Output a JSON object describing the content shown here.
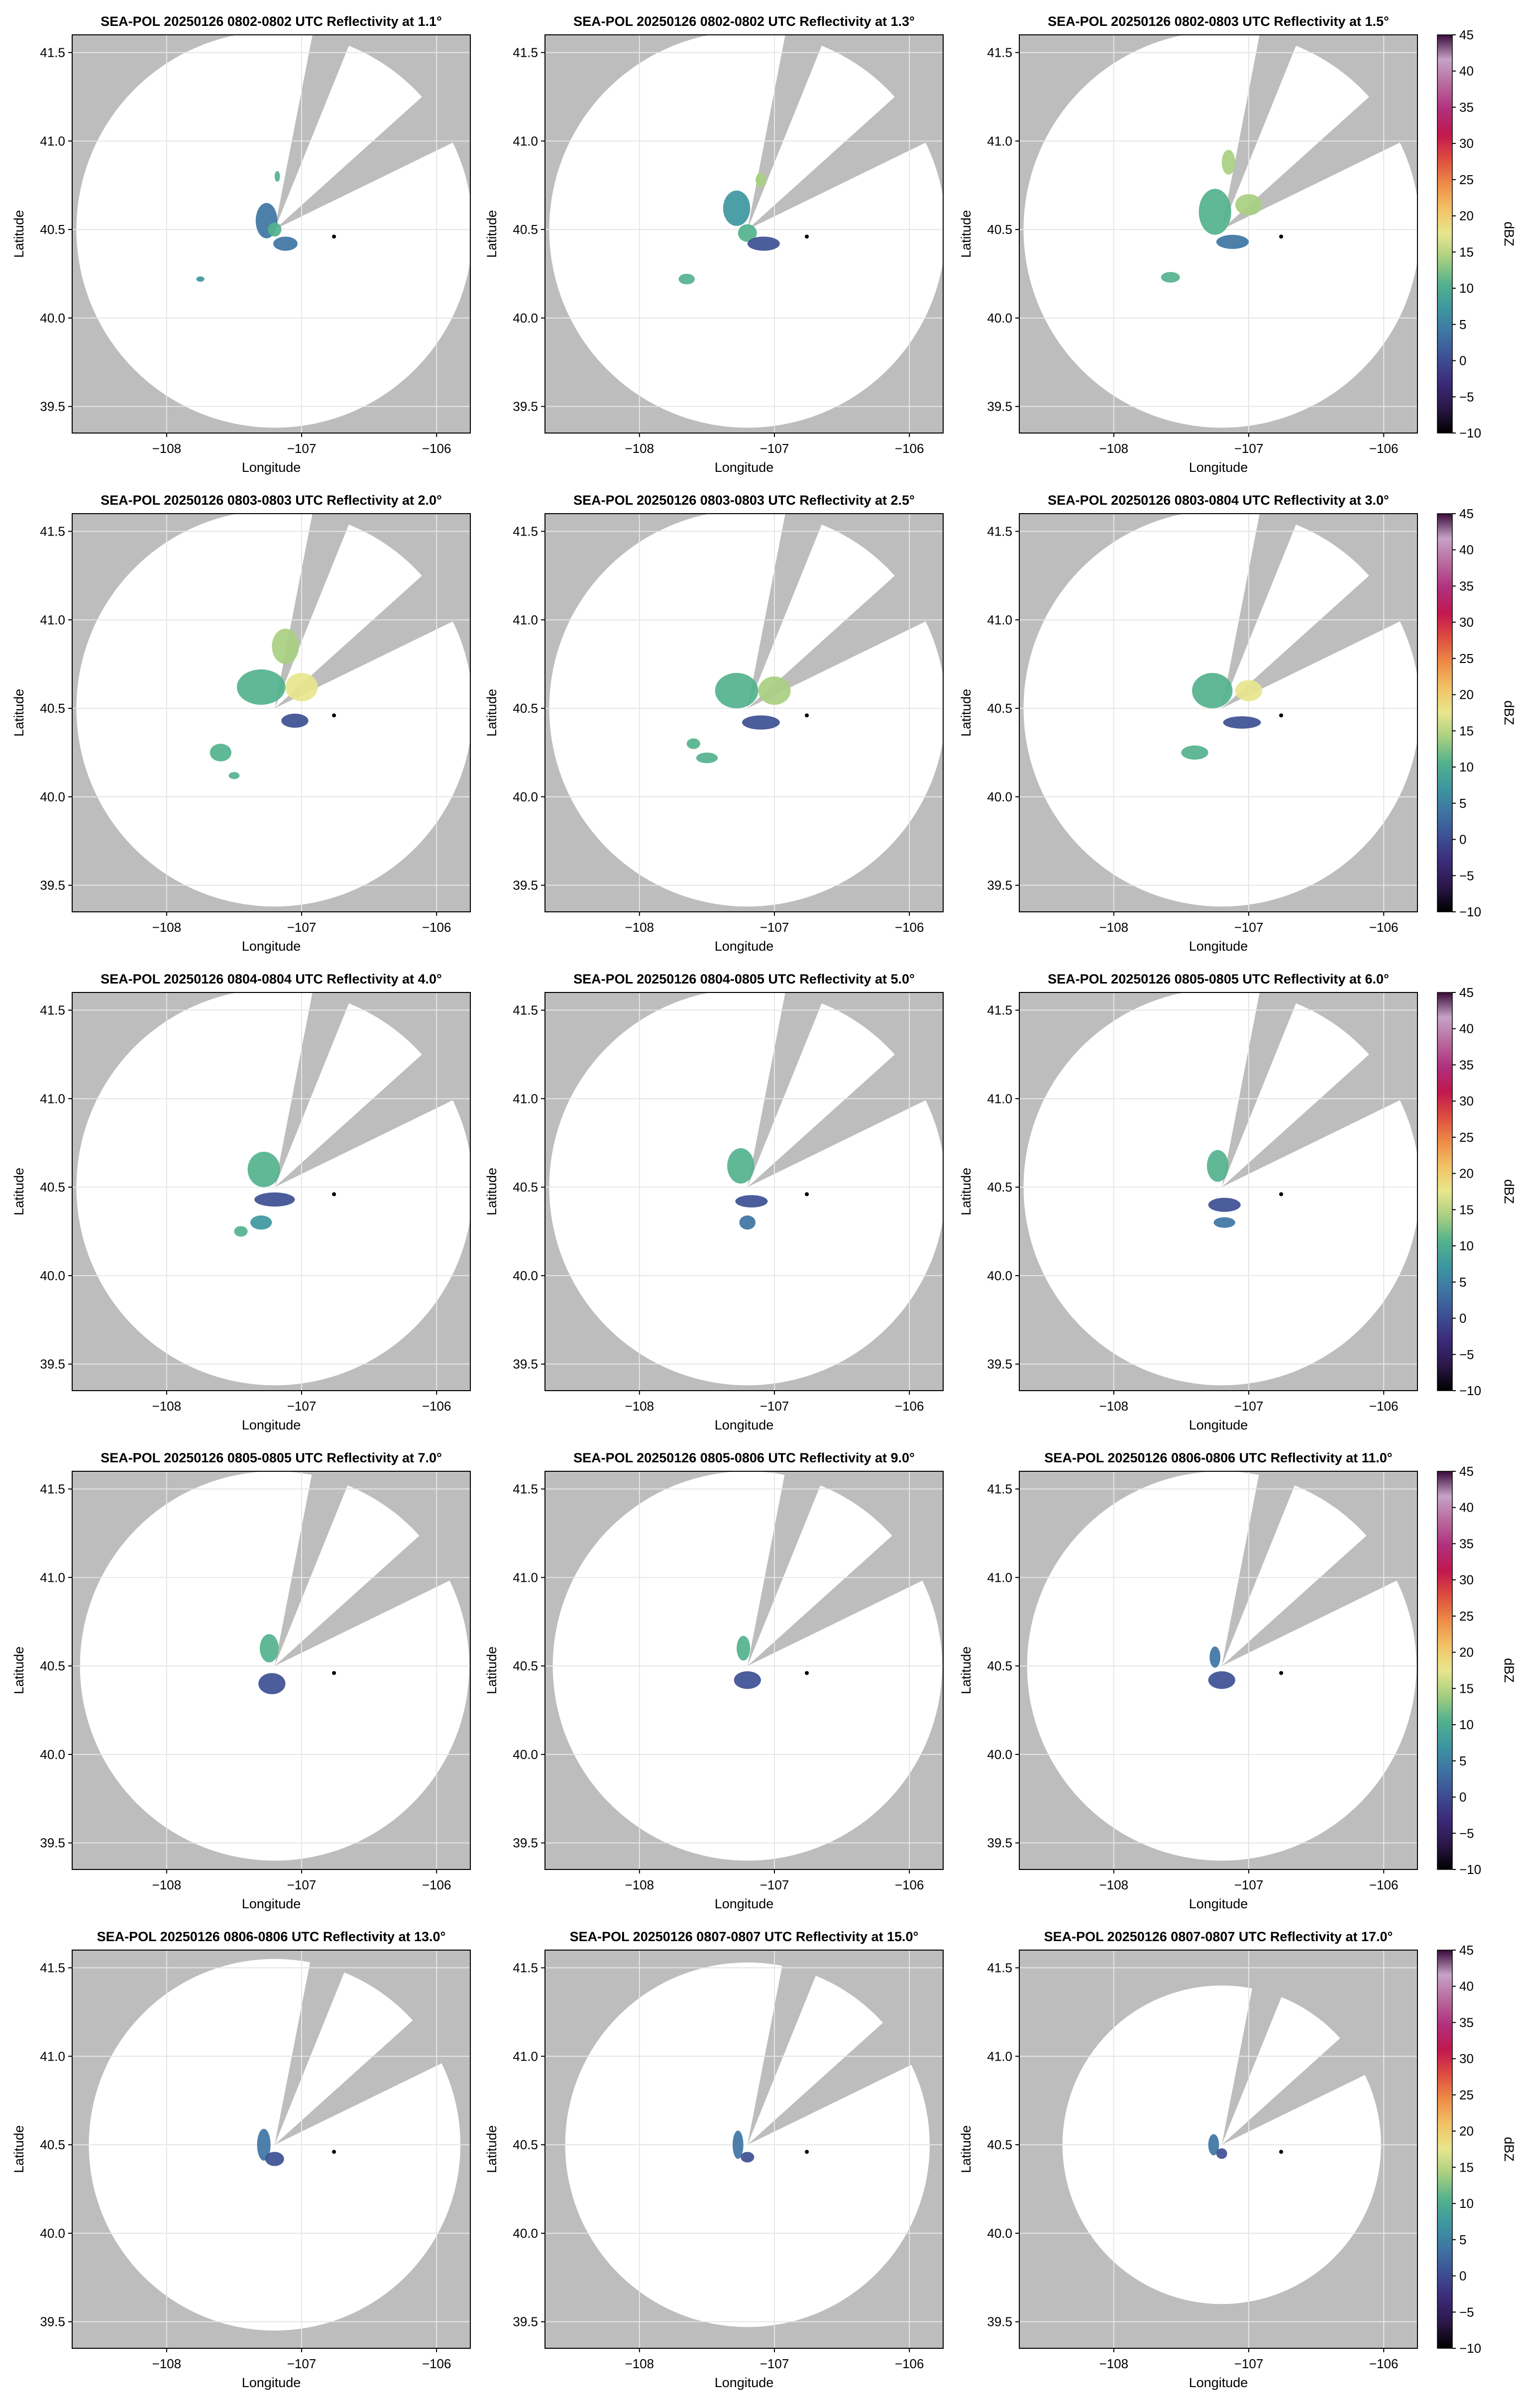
{
  "figure": {
    "colors": {
      "background_gray": "#bdbdbd",
      "coverage": "#ffffff",
      "grid": "#e6e6e6",
      "frame": "#000000",
      "radar_marker": "#000000"
    },
    "colorbar": {
      "label": "dBZ",
      "ticks": [
        "45",
        "40",
        "35",
        "30",
        "25",
        "20",
        "15",
        "10",
        "5",
        "0",
        "−5",
        "−10"
      ],
      "colormap_stops": [
        "#000000",
        "#2b1748",
        "#3b2a78",
        "#3d4f93",
        "#3e74a4",
        "#3d97a0",
        "#53b28d",
        "#a8cf80",
        "#e8e68e",
        "#f3c265",
        "#ee8c48",
        "#dd4d3e",
        "#c1184f",
        "#b0307c",
        "#b9699e",
        "#c6a3c7",
        "#3a0a3a"
      ]
    },
    "panels": [
      {
        "title": "SEA-POL 20250126 0802-0802 UTC Reflectivity at 1.1°",
        "elevation": 1.1,
        "has_colorbar": false
      },
      {
        "title": "SEA-POL 20250126 0802-0802 UTC Reflectivity at 1.3°",
        "elevation": 1.3,
        "has_colorbar": false
      },
      {
        "title": "SEA-POL 20250126 0802-0803 UTC Reflectivity at 1.5°",
        "elevation": 1.5,
        "has_colorbar": true
      },
      {
        "title": "SEA-POL 20250126 0803-0803 UTC Reflectivity at 2.0°",
        "elevation": 2.0,
        "has_colorbar": false
      },
      {
        "title": "SEA-POL 20250126 0803-0803 UTC Reflectivity at 2.5°",
        "elevation": 2.5,
        "has_colorbar": false
      },
      {
        "title": "SEA-POL 20250126 0803-0804 UTC Reflectivity at 3.0°",
        "elevation": 3.0,
        "has_colorbar": true
      },
      {
        "title": "SEA-POL 20250126 0804-0804 UTC Reflectivity at 4.0°",
        "elevation": 4.0,
        "has_colorbar": false
      },
      {
        "title": "SEA-POL 20250126 0804-0805 UTC Reflectivity at 5.0°",
        "elevation": 5.0,
        "has_colorbar": false
      },
      {
        "title": "SEA-POL 20250126 0805-0805 UTC Reflectivity at 6.0°",
        "elevation": 6.0,
        "has_colorbar": true
      },
      {
        "title": "SEA-POL 20250126 0805-0805 UTC Reflectivity at 7.0°",
        "elevation": 7.0,
        "has_colorbar": false
      },
      {
        "title": "SEA-POL 20250126 0805-0806 UTC Reflectivity at 9.0°",
        "elevation": 9.0,
        "has_colorbar": false
      },
      {
        "title": "SEA-POL 20250126 0806-0806 UTC Reflectivity at 11.0°",
        "elevation": 11.0,
        "has_colorbar": true
      },
      {
        "title": "SEA-POL 20250126 0806-0806 UTC Reflectivity at 13.0°",
        "elevation": 13.0,
        "has_colorbar": false
      },
      {
        "title": "SEA-POL 20250126 0807-0807 UTC Reflectivity at 15.0°",
        "elevation": 15.0,
        "has_colorbar": false
      },
      {
        "title": "SEA-POL 20250126 0807-0807 UTC Reflectivity at 17.0°",
        "elevation": 17.0,
        "has_colorbar": true
      }
    ]
  },
  "chart_data": {
    "type": "heatmap",
    "subtype": "radar PPI reflectivity maps, 5x3 grid",
    "xlabel": "Longitude",
    "ylabel": "Latitude",
    "xlim": [
      -108.7,
      -105.75
    ],
    "ylim": [
      39.35,
      41.6
    ],
    "xticks": [
      -108,
      -107,
      -106
    ],
    "xtick_labels": [
      "−108",
      "−107",
      "−106"
    ],
    "yticks": [
      39.5,
      40.0,
      40.5,
      41.0,
      41.5
    ],
    "ytick_labels": [
      "39.5",
      "40.0",
      "40.5",
      "41.0",
      "41.5"
    ],
    "grid": true,
    "colorbar": {
      "label": "dBZ",
      "range": [
        -10,
        45
      ],
      "ticks": [
        45,
        40,
        35,
        30,
        25,
        20,
        15,
        10,
        5,
        0,
        -5,
        -10
      ]
    },
    "radar_location": {
      "lon": -107.2,
      "lat": 40.5
    },
    "marker": {
      "lon": -106.76,
      "lat": 40.46
    },
    "blocked_sectors_deg": [
      [
        11,
        22
      ],
      [
        48,
        64
      ]
    ],
    "coverage_radius_deg_lat": [
      1.12,
      1.12,
      1.12,
      1.12,
      1.12,
      1.12,
      1.12,
      1.12,
      1.12,
      1.1,
      1.1,
      1.1,
      1.05,
      1.03,
      0.9
    ],
    "echoes_dbz": [
      [
        {
          "lon": -107.26,
          "lat": 40.55,
          "rx": 0.08,
          "ry": 0.1,
          "dbz": 5
        },
        {
          "lon": -107.2,
          "lat": 40.5,
          "rx": 0.05,
          "ry": 0.04,
          "dbz": 12
        },
        {
          "lon": -107.12,
          "lat": 40.42,
          "rx": 0.09,
          "ry": 0.04,
          "dbz": 3
        },
        {
          "lon": -107.18,
          "lat": 40.8,
          "rx": 0.02,
          "ry": 0.03,
          "dbz": 10
        },
        {
          "lon": -107.75,
          "lat": 40.22,
          "rx": 0.03,
          "ry": 0.015,
          "dbz": 8
        }
      ],
      [
        {
          "lon": -107.28,
          "lat": 40.62,
          "rx": 0.1,
          "ry": 0.1,
          "dbz": 8
        },
        {
          "lon": -107.2,
          "lat": 40.48,
          "rx": 0.07,
          "ry": 0.05,
          "dbz": 12
        },
        {
          "lon": -107.08,
          "lat": 40.42,
          "rx": 0.12,
          "ry": 0.04,
          "dbz": 2
        },
        {
          "lon": -107.65,
          "lat": 40.22,
          "rx": 0.06,
          "ry": 0.03,
          "dbz": 10
        },
        {
          "lon": -107.1,
          "lat": 40.78,
          "rx": 0.04,
          "ry": 0.04,
          "dbz": 14
        }
      ],
      [
        {
          "lon": -107.25,
          "lat": 40.6,
          "rx": 0.12,
          "ry": 0.13,
          "dbz": 9
        },
        {
          "lon": -107.0,
          "lat": 40.64,
          "rx": 0.1,
          "ry": 0.06,
          "dbz": 15
        },
        {
          "lon": -107.12,
          "lat": 40.43,
          "rx": 0.12,
          "ry": 0.04,
          "dbz": 3
        },
        {
          "lon": -107.58,
          "lat": 40.23,
          "rx": 0.07,
          "ry": 0.03,
          "dbz": 10
        },
        {
          "lon": -107.15,
          "lat": 40.88,
          "rx": 0.05,
          "ry": 0.07,
          "dbz": 15
        }
      ],
      [
        {
          "lon": -107.3,
          "lat": 40.62,
          "rx": 0.18,
          "ry": 0.1,
          "dbz": 10
        },
        {
          "lon": -107.0,
          "lat": 40.62,
          "rx": 0.12,
          "ry": 0.08,
          "dbz": 16
        },
        {
          "lon": -107.12,
          "lat": 40.85,
          "rx": 0.1,
          "ry": 0.1,
          "dbz": 14
        },
        {
          "lon": -107.05,
          "lat": 40.43,
          "rx": 0.1,
          "ry": 0.04,
          "dbz": 2
        },
        {
          "lon": -107.6,
          "lat": 40.25,
          "rx": 0.08,
          "ry": 0.05,
          "dbz": 9
        },
        {
          "lon": -107.5,
          "lat": 40.12,
          "rx": 0.04,
          "ry": 0.02,
          "dbz": 10
        }
      ],
      [
        {
          "lon": -107.28,
          "lat": 40.6,
          "rx": 0.16,
          "ry": 0.1,
          "dbz": 9
        },
        {
          "lon": -107.0,
          "lat": 40.6,
          "rx": 0.12,
          "ry": 0.08,
          "dbz": 15
        },
        {
          "lon": -107.1,
          "lat": 40.42,
          "rx": 0.14,
          "ry": 0.04,
          "dbz": 2
        },
        {
          "lon": -107.5,
          "lat": 40.22,
          "rx": 0.08,
          "ry": 0.03,
          "dbz": 9
        },
        {
          "lon": -107.6,
          "lat": 40.3,
          "rx": 0.05,
          "ry": 0.03,
          "dbz": 10
        }
      ],
      [
        {
          "lon": -107.27,
          "lat": 40.6,
          "rx": 0.15,
          "ry": 0.1,
          "dbz": 10
        },
        {
          "lon": -107.0,
          "lat": 40.6,
          "rx": 0.1,
          "ry": 0.06,
          "dbz": 16
        },
        {
          "lon": -107.05,
          "lat": 40.42,
          "rx": 0.14,
          "ry": 0.035,
          "dbz": 2
        },
        {
          "lon": -107.4,
          "lat": 40.25,
          "rx": 0.1,
          "ry": 0.04,
          "dbz": 9
        }
      ],
      [
        {
          "lon": -107.28,
          "lat": 40.6,
          "rx": 0.12,
          "ry": 0.1,
          "dbz": 9
        },
        {
          "lon": -107.2,
          "lat": 40.43,
          "rx": 0.15,
          "ry": 0.04,
          "dbz": 2
        },
        {
          "lon": -107.3,
          "lat": 40.3,
          "rx": 0.08,
          "ry": 0.04,
          "dbz": 6
        },
        {
          "lon": -107.45,
          "lat": 40.25,
          "rx": 0.05,
          "ry": 0.03,
          "dbz": 9
        }
      ],
      [
        {
          "lon": -107.25,
          "lat": 40.62,
          "rx": 0.1,
          "ry": 0.1,
          "dbz": 9
        },
        {
          "lon": -107.17,
          "lat": 40.42,
          "rx": 0.12,
          "ry": 0.035,
          "dbz": 1
        },
        {
          "lon": -107.2,
          "lat": 40.3,
          "rx": 0.06,
          "ry": 0.04,
          "dbz": 5
        }
      ],
      [
        {
          "lon": -107.23,
          "lat": 40.62,
          "rx": 0.08,
          "ry": 0.09,
          "dbz": 9
        },
        {
          "lon": -107.18,
          "lat": 40.4,
          "rx": 0.12,
          "ry": 0.04,
          "dbz": 1
        },
        {
          "lon": -107.18,
          "lat": 40.3,
          "rx": 0.08,
          "ry": 0.03,
          "dbz": 3
        }
      ],
      [
        {
          "lon": -107.24,
          "lat": 40.6,
          "rx": 0.07,
          "ry": 0.08,
          "dbz": 9
        },
        {
          "lon": -107.22,
          "lat": 40.4,
          "rx": 0.1,
          "ry": 0.06,
          "dbz": 2
        }
      ],
      [
        {
          "lon": -107.23,
          "lat": 40.6,
          "rx": 0.05,
          "ry": 0.07,
          "dbz": 10
        },
        {
          "lon": -107.2,
          "lat": 40.42,
          "rx": 0.1,
          "ry": 0.05,
          "dbz": 2
        }
      ],
      [
        {
          "lon": -107.25,
          "lat": 40.55,
          "rx": 0.04,
          "ry": 0.06,
          "dbz": 4
        },
        {
          "lon": -107.2,
          "lat": 40.42,
          "rx": 0.1,
          "ry": 0.05,
          "dbz": 2
        }
      ],
      [
        {
          "lon": -107.28,
          "lat": 40.5,
          "rx": 0.05,
          "ry": 0.09,
          "dbz": 3
        },
        {
          "lon": -107.2,
          "lat": 40.42,
          "rx": 0.07,
          "ry": 0.04,
          "dbz": 2
        }
      ],
      [
        {
          "lon": -107.27,
          "lat": 40.5,
          "rx": 0.04,
          "ry": 0.08,
          "dbz": 3
        },
        {
          "lon": -107.2,
          "lat": 40.43,
          "rx": 0.05,
          "ry": 0.03,
          "dbz": 2
        }
      ],
      [
        {
          "lon": -107.26,
          "lat": 40.5,
          "rx": 0.04,
          "ry": 0.06,
          "dbz": 3
        },
        {
          "lon": -107.2,
          "lat": 40.45,
          "rx": 0.04,
          "ry": 0.03,
          "dbz": 2
        }
      ]
    ]
  }
}
